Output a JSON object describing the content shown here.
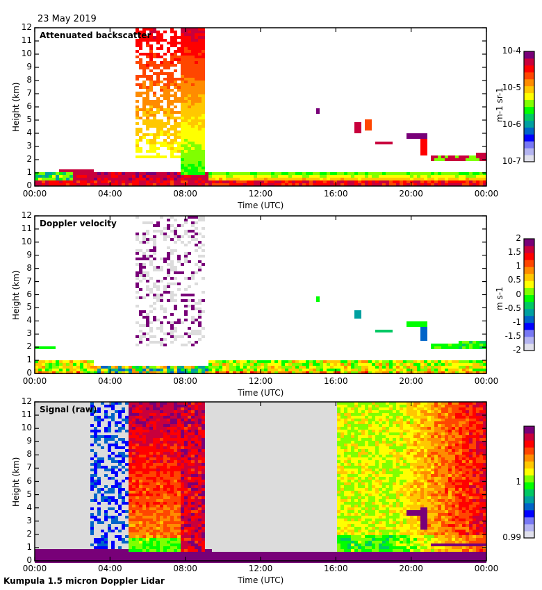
{
  "header": {
    "date": "23 May 2019"
  },
  "footer": {
    "instrument": "Kumpula 1.5 micron Doppler Lidar"
  },
  "colors": {
    "missing_bg": "#dcdcdc",
    "colormap": [
      "#e0e0ec",
      "#b4b4f0",
      "#7878f4",
      "#0000ff",
      "#0064c8",
      "#00a0a0",
      "#00c864",
      "#00ff00",
      "#80ff00",
      "#ffff00",
      "#ffc800",
      "#ff8c00",
      "#ff4600",
      "#ff0000",
      "#c8003c",
      "#780078"
    ]
  },
  "chart_data": [
    {
      "type": "heatmap",
      "title": "Attenuated backscatter",
      "xlabel": "Time (UTC)",
      "ylabel": "Height (km)",
      "x_ticks": [
        "00:00",
        "04:00",
        "08:00",
        "12:00",
        "16:00",
        "20:00",
        "00:00"
      ],
      "xlim_hours": [
        0,
        24
      ],
      "y_ticks": [
        "0",
        "1",
        "2",
        "3",
        "4",
        "5",
        "6",
        "7",
        "8",
        "9",
        "10",
        "11",
        "12"
      ],
      "ylim": [
        0,
        12
      ],
      "colorbar": {
        "label": "m-1 sr-1",
        "scale": "log",
        "range": [
          1e-07,
          0.0001
        ],
        "ticks": [
          "10-7",
          "10-6",
          "10-5",
          "10-4"
        ]
      },
      "features": [
        {
          "name": "boundary layer",
          "t0": 0,
          "t1": 24,
          "h0": 0,
          "h1": 1.0,
          "level": 0.75
        },
        {
          "name": "precip column 1",
          "t0": 5.2,
          "t1": 7.6,
          "h0": 2.0,
          "h1": 12,
          "level": 0.55
        },
        {
          "name": "precip column 2",
          "t0": 7.6,
          "t1": 9.0,
          "h0": 0.9,
          "h1": 12,
          "level": 0.7
        },
        {
          "name": "cloud 15h",
          "t0": 14.8,
          "t1": 15.0,
          "h0": 5.4,
          "h1": 5.7,
          "level": 0.95
        },
        {
          "name": "cloud 17h",
          "t0": 16.9,
          "t1": 17.3,
          "h0": 4.2,
          "h1": 4.7,
          "level": 0.85
        },
        {
          "name": "cloud 20h",
          "t0": 19.7,
          "t1": 21.5,
          "h0": 3.0,
          "h1": 3.5,
          "level": 0.95
        },
        {
          "name": "cloud layer 2km",
          "t0": 21.0,
          "t1": 24,
          "h0": 1.8,
          "h1": 2.2,
          "level": 0.9
        }
      ]
    },
    {
      "type": "heatmap",
      "title": "Doppler velocity",
      "xlabel": "Time (UTC)",
      "ylabel": "Height (km)",
      "x_ticks": [
        "00:00",
        "04:00",
        "08:00",
        "12:00",
        "16:00",
        "20:00",
        "00:00"
      ],
      "xlim_hours": [
        0,
        24
      ],
      "y_ticks": [
        "0",
        "1",
        "2",
        "3",
        "4",
        "5",
        "6",
        "7",
        "8",
        "9",
        "10",
        "11",
        "12"
      ],
      "ylim": [
        0,
        12
      ],
      "colorbar": {
        "label": "m s-1",
        "scale": "linear",
        "range": [
          -2,
          2
        ],
        "ticks": [
          "2",
          "1.5",
          "1",
          "0.5",
          "0",
          "-0.5",
          "-1",
          "-1.5",
          "-2"
        ]
      }
    },
    {
      "type": "heatmap",
      "title": "Signal (raw)",
      "xlabel": "Time (UTC)",
      "ylabel": "Height (km)",
      "x_ticks": [
        "00:00",
        "04:00",
        "08:00",
        "12:00",
        "16:00",
        "20:00",
        "00:00"
      ],
      "xlim_hours": [
        0,
        24
      ],
      "y_ticks": [
        "0",
        "1",
        "2",
        "3",
        "4",
        "5",
        "6",
        "7",
        "8",
        "9",
        "10",
        "11",
        "12"
      ],
      "ylim": [
        0,
        12
      ],
      "colorbar": {
        "label": "",
        "scale": "linear",
        "range": [
          0.99,
          1.01
        ],
        "ticks": [
          "1",
          "0.99"
        ]
      }
    }
  ]
}
